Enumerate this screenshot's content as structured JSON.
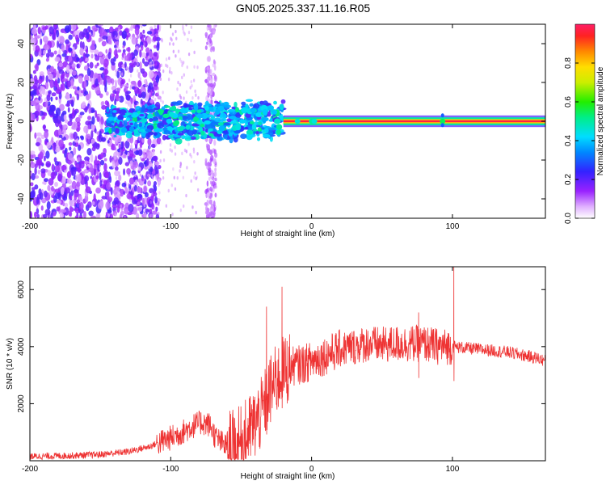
{
  "title": "GN05.2025.337.11.16.R05",
  "chart_data": [
    {
      "type": "heatmap",
      "xlabel": "Height of straight line (km)",
      "ylabel": "Frequency (Hz)",
      "xlim": [
        -200,
        166
      ],
      "ylim": [
        -50,
        50
      ],
      "xticks": [
        -200,
        -100,
        0,
        100
      ],
      "yticks": [
        -40,
        -20,
        0,
        20,
        40
      ],
      "colorbar": {
        "label": "Normalized spectral amplitude",
        "range": [
          0,
          1
        ],
        "ticks": [
          "0.0",
          "0.2",
          "0.4",
          "0.6",
          "0.8"
        ]
      },
      "features": [
        {
          "name": "diffuse noise",
          "x_range": [
            -200,
            -110
          ],
          "freq_range": [
            -50,
            50
          ]
        },
        {
          "name": "noise streak",
          "x_range": [
            -75,
            -68
          ],
          "freq_range": [
            -50,
            50
          ]
        },
        {
          "name": "clustered signal",
          "x_range": [
            -140,
            -20
          ],
          "freq_range": [
            -8,
            10
          ]
        },
        {
          "name": "steady carrier",
          "x_range": [
            -10,
            166
          ],
          "freq": 0,
          "amplitude": 1.0
        },
        {
          "name": "spike",
          "x": 93,
          "freq_range": [
            -3,
            5
          ]
        }
      ]
    },
    {
      "type": "line",
      "xlabel": "Height of straight line (km)",
      "ylabel": "SNR (10 * v/v)",
      "xlim": [
        -200,
        166
      ],
      "ylim": [
        0,
        6800
      ],
      "xticks": [
        -200,
        -100,
        0,
        100
      ],
      "yticks": [
        2000,
        4000,
        6000
      ],
      "series": [
        {
          "name": "SNR",
          "color": "#ee3333",
          "x": [
            -200,
            -170,
            -150,
            -130,
            -115,
            -100,
            -90,
            -85,
            -78,
            -72,
            -68,
            -62,
            -56,
            -50,
            -45,
            -40,
            -35,
            -30,
            -25,
            -20,
            -15,
            -10,
            -5,
            0,
            5,
            10,
            15,
            20,
            30,
            40,
            50,
            60,
            70,
            80,
            90,
            95,
            100,
            110,
            120,
            130,
            140,
            150,
            160,
            166
          ],
          "y": [
            150,
            180,
            220,
            320,
            500,
            800,
            1050,
            1200,
            1350,
            1250,
            800,
            550,
            500,
            650,
            1000,
            1300,
            1700,
            2400,
            2800,
            3100,
            3300,
            3350,
            3400,
            3500,
            3600,
            3700,
            3800,
            3900,
            4000,
            4100,
            4050,
            4100,
            4100,
            4100,
            4000,
            4000,
            4000,
            3950,
            3900,
            3850,
            3800,
            3700,
            3600,
            3500
          ]
        }
      ],
      "spikes": [
        {
          "x": -32,
          "value": 5400
        },
        {
          "x": -21,
          "value": 6100
        },
        {
          "x": 76,
          "value": 5200
        },
        {
          "x": 101,
          "value": 6800
        }
      ]
    }
  ],
  "colors": {
    "signal": "#ee3333",
    "heat_low": "#cc99ff",
    "heat_mid": "#3355ff",
    "heat_high": "#ff1e1e",
    "axis": "#000000"
  }
}
